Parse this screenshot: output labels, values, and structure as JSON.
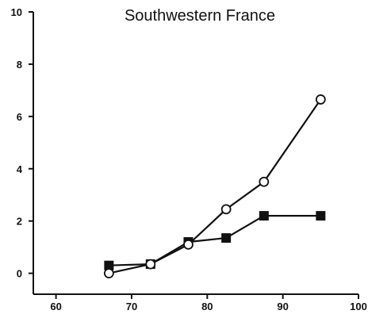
{
  "chart_data": {
    "type": "line",
    "title": "Southwestern France",
    "xlabel": "",
    "ylabel": "",
    "xlim": [
      57,
      100
    ],
    "ylim": [
      -0.8,
      10
    ],
    "x_ticks": [
      60,
      70,
      80,
      90,
      100
    ],
    "y_ticks": [
      0,
      2,
      4,
      6,
      8,
      10
    ],
    "grid": false,
    "legend": "none",
    "series": [
      {
        "marker": "open-circle",
        "color": "#111111",
        "x": [
          67,
          72.5,
          77.5,
          82.5,
          87.5,
          95
        ],
        "y": [
          0.0,
          0.35,
          1.1,
          2.45,
          3.5,
          6.65
        ]
      },
      {
        "marker": "filled-square",
        "color": "#111111",
        "x": [
          67,
          72.5,
          77.5,
          82.5,
          87.5,
          95
        ],
        "y": [
          0.3,
          0.35,
          1.2,
          1.35,
          2.2,
          2.2
        ]
      }
    ]
  }
}
